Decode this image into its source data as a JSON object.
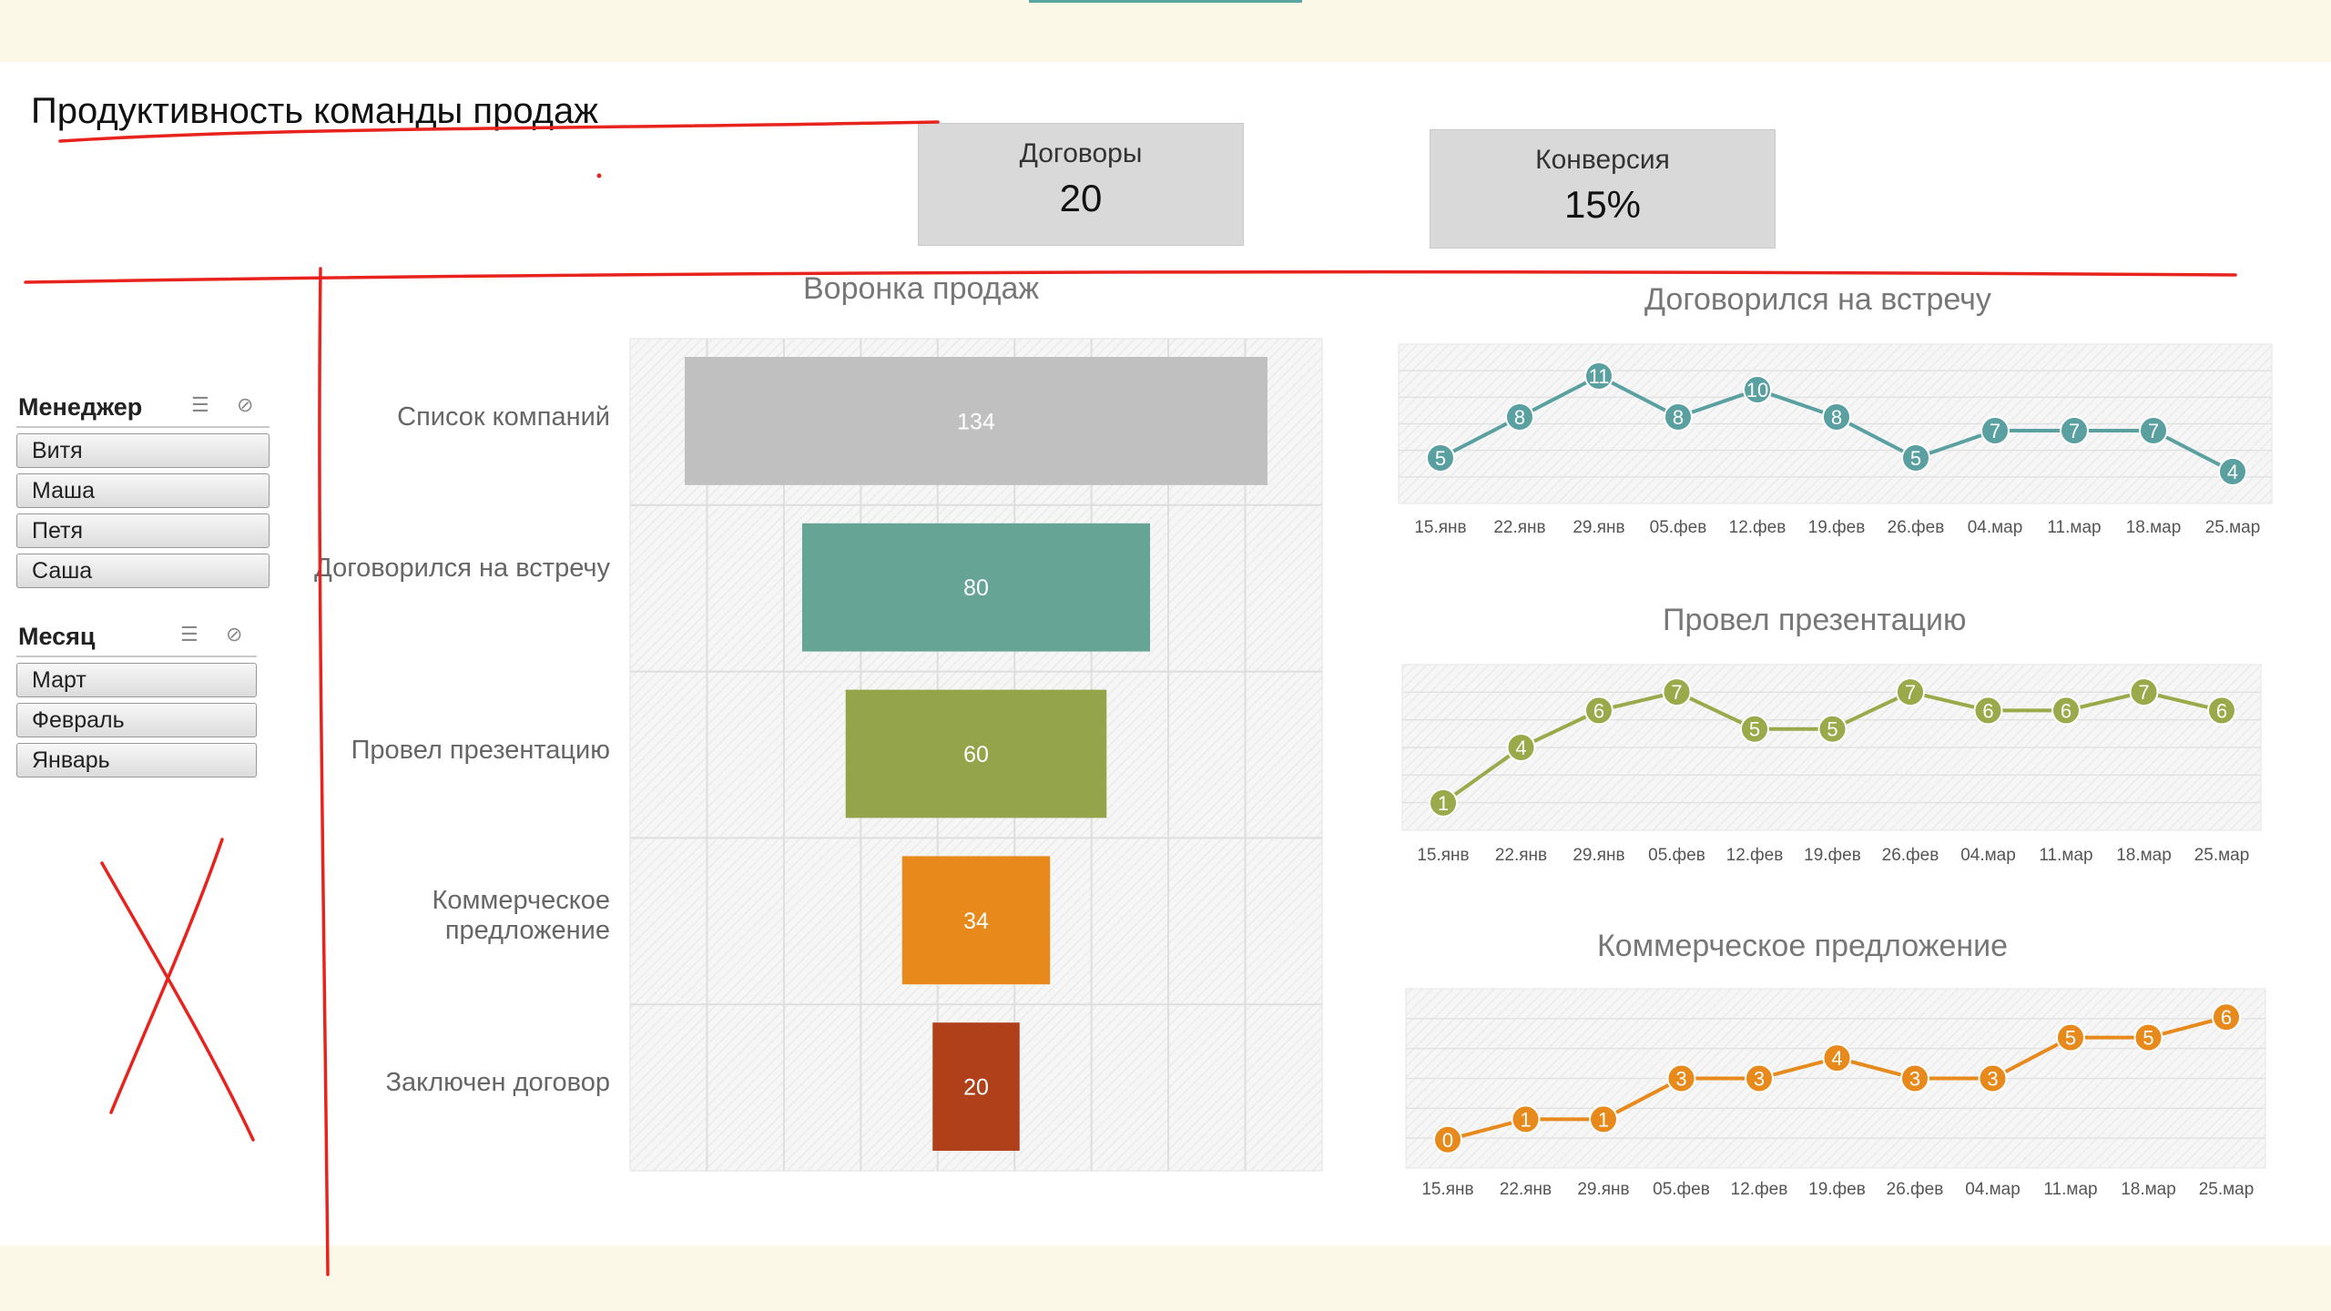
{
  "header": {
    "title": "Продуктивность команды продаж"
  },
  "kpis": {
    "contracts": {
      "label": "Договоры",
      "value": "20"
    },
    "conversion": {
      "label": "Конверсия",
      "value": "15%"
    }
  },
  "slicers": {
    "manager": {
      "title": "Менеджер",
      "items": [
        "Витя",
        "Маша",
        "Петя",
        "Саша"
      ]
    },
    "month": {
      "title": "Месяц",
      "items": [
        "Март",
        "Февраль",
        "Январь"
      ]
    }
  },
  "colors": {
    "funnel": [
      "#c0c0c0",
      "#66a596",
      "#94a44a",
      "#e8891c",
      "#b0401a"
    ],
    "line1": "#5aa0a0",
    "line2": "#9aaa4a",
    "line3": "#e8891c",
    "annotation": "#e8231e"
  },
  "chart_data": [
    {
      "type": "bar",
      "title": "Воронка продаж",
      "categories": [
        "Список компаний",
        "Договорился на встречу",
        "Провел презентацию",
        "Коммерческое предложение",
        "Заключен договор"
      ],
      "values": [
        134,
        80,
        60,
        34,
        20
      ],
      "orientation": "horizontal-funnel"
    },
    {
      "type": "line",
      "title": "Договорился на встречу",
      "x": [
        "15.янв",
        "22.янв",
        "29.янв",
        "05.фев",
        "12.фев",
        "19.фев",
        "26.фев",
        "04.мар",
        "11.мар",
        "18.мар",
        "25.мар"
      ],
      "values": [
        5,
        8,
        11,
        8,
        10,
        8,
        5,
        7,
        7,
        7,
        4
      ]
    },
    {
      "type": "line",
      "title": "Провел презентацию",
      "x": [
        "15.янв",
        "22.янв",
        "29.янв",
        "05.фев",
        "12.фев",
        "19.фев",
        "26.фев",
        "04.мар",
        "11.мар",
        "18.мар",
        "25.мар"
      ],
      "values": [
        1,
        4,
        6,
        7,
        5,
        5,
        7,
        6,
        6,
        7,
        6
      ]
    },
    {
      "type": "line",
      "title": "Коммерческое предложение",
      "x": [
        "15.янв",
        "22.янв",
        "29.янв",
        "05.фев",
        "12.фев",
        "19.фев",
        "26.фев",
        "04.мар",
        "11.мар",
        "18.мар",
        "25.мар"
      ],
      "values": [
        0,
        1,
        1,
        3,
        3,
        4,
        3,
        3,
        5,
        5,
        6
      ]
    }
  ]
}
